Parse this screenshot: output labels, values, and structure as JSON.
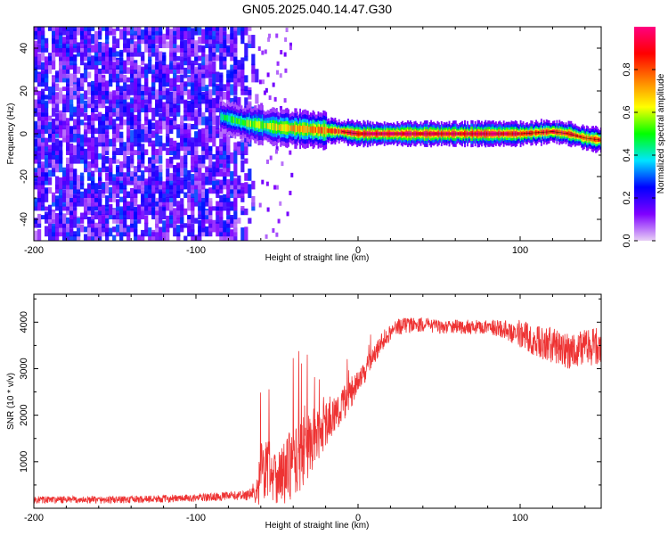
{
  "figure": {
    "title": "GN05.2025.040.14.47.G30"
  },
  "chart_data": [
    {
      "type": "heatmap",
      "xlabel": "Height of straight line (km)",
      "ylabel": "Frequency (Hz)",
      "xlim": [
        -200,
        150
      ],
      "ylim": [
        -50,
        50
      ],
      "xticks": [
        -200,
        -100,
        0,
        100
      ],
      "yticks": [
        -40,
        -20,
        0,
        20,
        40
      ],
      "colorbar": {
        "label": "Normalized spectral amplitude",
        "range": [
          0,
          1
        ],
        "ticks": [
          "0.0",
          "0.2",
          "0.4",
          "0.6",
          "0.8"
        ],
        "tick_values": [
          0.0,
          0.2,
          0.4,
          0.6,
          0.8
        ],
        "colormap_stops": [
          "#e8d0f5",
          "#7f00ff",
          "#0000ff",
          "#00e5ff",
          "#00ff00",
          "#ffff00",
          "#ff8000",
          "#ff0000",
          "#ff0080"
        ]
      },
      "noise_region": {
        "x_range": [
          -200,
          -62
        ],
        "amplitude_range": [
          0.05,
          0.3
        ]
      },
      "ridge": {
        "x": [
          -85,
          -70,
          -60,
          -50,
          -40,
          -30,
          -20,
          -10,
          0,
          20,
          40,
          60,
          80,
          100,
          110,
          120,
          130,
          140,
          150
        ],
        "frequency": [
          8,
          5,
          4,
          3,
          2.5,
          2,
          1.5,
          1,
          0,
          0,
          0,
          0,
          0,
          0,
          0.5,
          1,
          0,
          -2,
          -3
        ],
        "amplitude": [
          0.45,
          0.55,
          0.6,
          0.65,
          0.7,
          0.75,
          0.8,
          0.88,
          0.95,
          0.97,
          0.97,
          0.95,
          0.95,
          0.9,
          0.85,
          0.9,
          0.9,
          0.85,
          0.8
        ]
      }
    },
    {
      "type": "line",
      "xlabel": "Height of straight line (km)",
      "ylabel": "SNR (10 * v/v)",
      "xlim": [
        -200,
        150
      ],
      "ylim": [
        0,
        4600
      ],
      "xticks": [
        -200,
        -100,
        0,
        100
      ],
      "yticks": [
        1000,
        2000,
        3000,
        4000
      ],
      "color": "#ee3333",
      "series": [
        {
          "name": "SNR",
          "x": [
            -200,
            -150,
            -100,
            -70,
            -62,
            -60,
            -55,
            -50,
            -45,
            -40,
            -35,
            -30,
            -25,
            -20,
            -15,
            -10,
            -5,
            0,
            5,
            10,
            15,
            20,
            25,
            30,
            40,
            50,
            60,
            70,
            80,
            90,
            100,
            110,
            120,
            130,
            140,
            150
          ],
          "y": [
            180,
            180,
            220,
            280,
            350,
            800,
            900,
            700,
            750,
            1000,
            1200,
            1400,
            1600,
            1800,
            2000,
            2200,
            2400,
            2700,
            3000,
            3300,
            3600,
            3800,
            3900,
            3950,
            3950,
            3900,
            3900,
            3900,
            3900,
            3850,
            3750,
            3600,
            3500,
            3400,
            3450,
            3500
          ],
          "noise": [
            80,
            80,
            80,
            100,
            300,
            700,
            700,
            600,
            700,
            800,
            800,
            700,
            600,
            500,
            400,
            400,
            300,
            250,
            250,
            200,
            200,
            200,
            180,
            180,
            150,
            150,
            150,
            150,
            150,
            200,
            300,
            350,
            400,
            400,
            400,
            400
          ]
        }
      ]
    }
  ]
}
